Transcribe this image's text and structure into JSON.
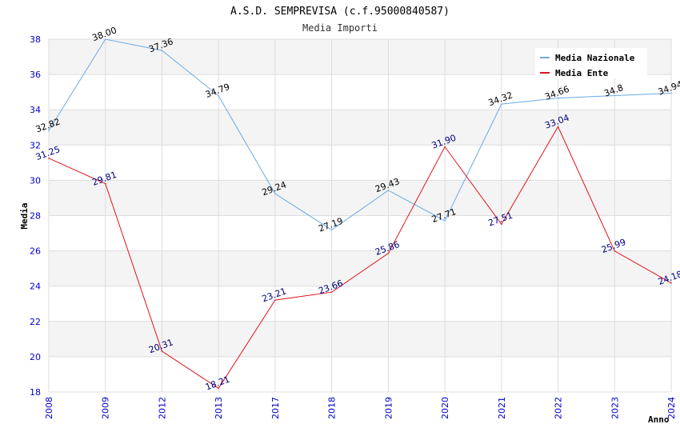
{
  "chart_data": {
    "type": "line",
    "title": "A.S.D. SEMPREVISA (c.f.95000840587)",
    "subtitle": "Media Importi",
    "xlabel": "Anno",
    "ylabel": "Media",
    "categories": [
      "2008",
      "2009",
      "2012",
      "2013",
      "2017",
      "2018",
      "2019",
      "2020",
      "2021",
      "2022",
      "2023",
      "2024"
    ],
    "ylim": [
      18,
      38
    ],
    "yticks": [
      18,
      20,
      22,
      24,
      26,
      28,
      30,
      32,
      34,
      36,
      38
    ],
    "grid": true,
    "legend_position": "top-right",
    "series": [
      {
        "name": "Media Nazionale",
        "color": "#6aaae6",
        "label_color": "#000000",
        "values": [
          32.82,
          38.0,
          37.36,
          34.79,
          29.24,
          27.19,
          29.43,
          27.71,
          34.32,
          34.66,
          34.8,
          34.94
        ],
        "labels": [
          "32.82",
          "38.00",
          "37.36",
          "34.79",
          "29.24",
          "27.19",
          "29.43",
          "27.71",
          "34.32",
          "34.66",
          "34.8",
          "34.94"
        ]
      },
      {
        "name": "Media Ente",
        "color": "#e0141e",
        "label_color": "#000080",
        "values": [
          31.25,
          29.81,
          20.31,
          18.21,
          23.21,
          23.66,
          25.86,
          31.9,
          27.51,
          33.04,
          25.99,
          24.18
        ],
        "labels": [
          "31.25",
          "29.81",
          "20.31",
          "18.21",
          "23.21",
          "23.66",
          "25.86",
          "31.90",
          "27.51",
          "33.04",
          "25.99",
          "24.18"
        ]
      }
    ]
  }
}
